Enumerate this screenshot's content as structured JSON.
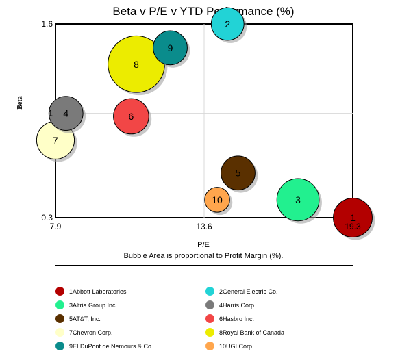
{
  "chart_data": {
    "type": "bubble",
    "title": "Beta v P/E v YTD Performance (%)",
    "xlabel": "P/E",
    "ylabel": "Beta",
    "subtitle": "Bubble Area is proportional to Profit Margin (%).",
    "x_ticks": [
      {
        "value": 7.9,
        "label": "7.9"
      },
      {
        "value": 13.6,
        "label": "13.6"
      },
      {
        "value": 19.3,
        "label": "19.3"
      }
    ],
    "y_ticks": [
      {
        "value": 0.3,
        "label": "0.3"
      },
      {
        "value": 1.0,
        "label": "1"
      },
      {
        "value": 1.6,
        "label": "1.6"
      }
    ],
    "xlim": [
      7.9,
      19.3
    ],
    "ylim": [
      0.3,
      1.6
    ],
    "grid": true,
    "series": [
      {
        "id": "1",
        "name": "Abbott Laboratories",
        "x": 19.3,
        "y": 0.3,
        "profit_margin": 17,
        "color": "#b30000"
      },
      {
        "id": "2",
        "name": "General Electric Co.",
        "x": 14.5,
        "y": 1.6,
        "profit_margin": 12,
        "color": "#22d3d6"
      },
      {
        "id": "3",
        "name": "Altria Group Inc.",
        "x": 17.2,
        "y": 0.42,
        "profit_margin": 20,
        "color": "#22f08f"
      },
      {
        "id": "4",
        "name": "Harris Corp.",
        "x": 8.3,
        "y": 1.0,
        "profit_margin": 13,
        "color": "#7a7a7a"
      },
      {
        "id": "5",
        "name": "AT&T, Inc.",
        "x": 14.9,
        "y": 0.6,
        "profit_margin": 13,
        "color": "#5a3000"
      },
      {
        "id": "6",
        "name": "Hasbro Inc.",
        "x": 10.8,
        "y": 0.98,
        "profit_margin": 14,
        "color": "#f24646"
      },
      {
        "id": "7",
        "name": "Chevron Corp.",
        "x": 7.9,
        "y": 0.82,
        "profit_margin": 16,
        "color": "#ffffc8"
      },
      {
        "id": "8",
        "name": "Royal Bank of Canada",
        "x": 11.0,
        "y": 1.33,
        "profit_margin": 36,
        "color": "#ecec00"
      },
      {
        "id": "9",
        "name": "EI DuPont de Nemours & Co.",
        "x": 12.3,
        "y": 1.44,
        "profit_margin": 13,
        "color": "#0a8c8c"
      },
      {
        "id": "10",
        "name": "UGI Corp",
        "x": 14.1,
        "y": 0.42,
        "profit_margin": 7,
        "color": "#ffa64d"
      }
    ],
    "legend_placement": "bottom"
  }
}
